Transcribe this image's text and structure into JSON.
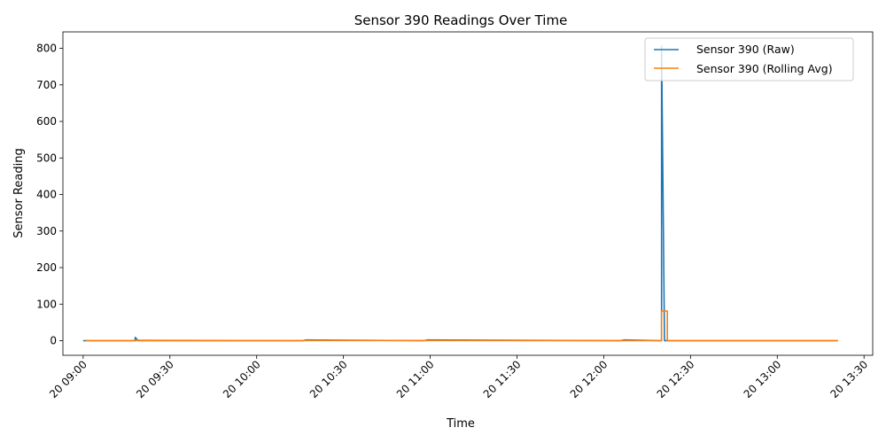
{
  "chart_data": {
    "type": "line",
    "title": "Sensor 390 Readings Over Time",
    "xlabel": "Time",
    "ylabel": "Sensor Reading",
    "x_axis_type": "time",
    "xlim": [
      "20 08:53",
      "20 13:33"
    ],
    "ylim": [
      -40,
      845
    ],
    "x_ticks": [
      "20 09:00",
      "20 09:30",
      "20 10:00",
      "20 10:30",
      "20 11:00",
      "20 11:30",
      "20 12:00",
      "20 12:30",
      "20 13:00",
      "20 13:30"
    ],
    "y_ticks": [
      0,
      100,
      200,
      300,
      400,
      500,
      600,
      700,
      800
    ],
    "grid": false,
    "legend_position": "top-right",
    "series": [
      {
        "name": "Sensor 390 (Raw)",
        "color": "#1f77b4",
        "x": [
          "20 09:00",
          "20 09:18",
          "20 09:18",
          "20 09:19",
          "20 10:16",
          "20 10:17",
          "20 10:58",
          "20 10:59",
          "20 12:06",
          "20 12:07",
          "20 12:20",
          "20 12:20",
          "20 12:21",
          "20 12:22",
          "20 13:21"
        ],
        "y": [
          0,
          0,
          9,
          0,
          0,
          2,
          0,
          2,
          0,
          2,
          0,
          806,
          0,
          0,
          0
        ]
      },
      {
        "name": "Sensor 390 (Rolling Avg)",
        "color": "#ff7f0e",
        "x": [
          "20 09:01",
          "20 09:18",
          "20 09:19",
          "20 10:16",
          "20 10:17",
          "20 12:20",
          "20 12:20",
          "20 12:22",
          "20 12:22",
          "20 13:21"
        ],
        "y": [
          0,
          0,
          1,
          0,
          0.5,
          0,
          81,
          81,
          0,
          0
        ]
      }
    ]
  }
}
